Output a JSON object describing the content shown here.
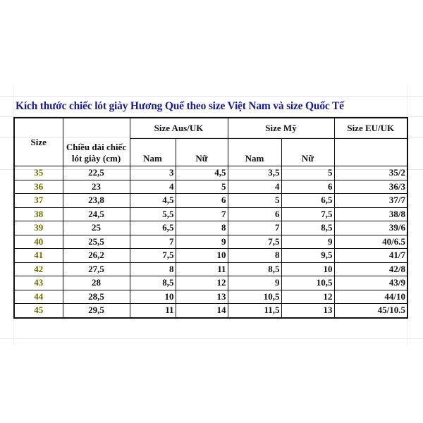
{
  "title": "Kích thước  chiếc lót giày Hương Quế theo size Việt Nam và size Quốc Tế",
  "headers": {
    "size": "Size",
    "length": "Chiều dài chiếc lót giày (cm)",
    "aus_uk": "Size Aus/UK",
    "us": "Size Mỹ",
    "eu_uk": "Size EU/UK",
    "male": "Nam",
    "female": "Nữ"
  },
  "colors": {
    "title": "#1c1c8a",
    "size_column": "#6b6b00",
    "border": "#111111"
  },
  "rows": [
    {
      "size": "35",
      "length": "22,5",
      "aus_nam": "3",
      "aus_nu": "4,5",
      "us_nam": "3,5",
      "us_nu": "5",
      "eu": "35/2"
    },
    {
      "size": "36",
      "length": "23",
      "aus_nam": "4",
      "aus_nu": "5",
      "us_nam": "4",
      "us_nu": "6",
      "eu": "36/3"
    },
    {
      "size": "37",
      "length": "23,8",
      "aus_nam": "4,5",
      "aus_nu": "6",
      "us_nam": "5",
      "us_nu": "6,5",
      "eu": "37/7"
    },
    {
      "size": "38",
      "length": "24,5",
      "aus_nam": "5,5",
      "aus_nu": "7",
      "us_nam": "6",
      "us_nu": "7,5",
      "eu": "38/8"
    },
    {
      "size": "39",
      "length": "25",
      "aus_nam": "6,5",
      "aus_nu": "8",
      "us_nam": "7",
      "us_nu": "8,5",
      "eu": "39/6"
    },
    {
      "size": "40",
      "length": "25,5",
      "aus_nam": "7",
      "aus_nu": "9",
      "us_nam": "7,5",
      "us_nu": "9",
      "eu": "40/6.5"
    },
    {
      "size": "41",
      "length": "26,2",
      "aus_nam": "7,5",
      "aus_nu": "10",
      "us_nam": "8",
      "us_nu": "9,5",
      "eu": "41/7"
    },
    {
      "size": "42",
      "length": "27,5",
      "aus_nam": "8",
      "aus_nu": "11",
      "us_nam": "8,5",
      "us_nu": "10",
      "eu": "42/8"
    },
    {
      "size": "43",
      "length": "28",
      "aus_nam": "8,5",
      "aus_nu": "12",
      "us_nam": "9",
      "us_nu": "10,5",
      "eu": "43/9"
    },
    {
      "size": "44",
      "length": "28,5",
      "aus_nam": "10",
      "aus_nu": "13",
      "us_nam": "10,5",
      "us_nu": "12",
      "eu": "44/10"
    },
    {
      "size": "45",
      "length": "29,5",
      "aus_nam": "11",
      "aus_nu": "14",
      "us_nam": "11,5",
      "us_nu": "13",
      "eu": "45/10.5"
    }
  ]
}
